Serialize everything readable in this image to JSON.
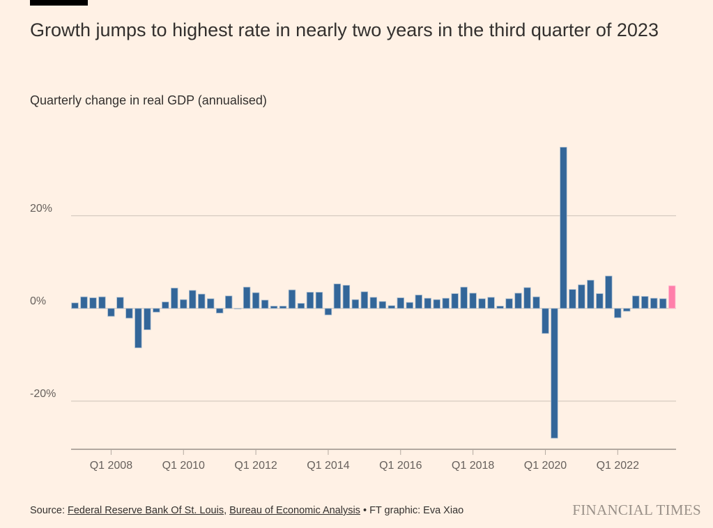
{
  "title": "Growth jumps to highest rate in nearly two years in the third quarter of 2023",
  "subtitle": "Quarterly change in real GDP (annualised)",
  "footer": {
    "source_label": "Source:",
    "source_links": [
      "Federal Reserve Bank Of St. Louis",
      "Bureau of Economic Analysis"
    ],
    "separator": "•",
    "credit": "FT graphic: Eva Xiao",
    "logo": "FINANCIAL TIMES"
  },
  "colors": {
    "background": "#fff1e5",
    "bar": "#336699",
    "highlight": "#ff7faa",
    "grid": "#ccc1b7"
  },
  "chart_data": {
    "type": "bar",
    "title": "Growth jumps to highest rate in nearly two years in the third quarter of 2023",
    "subtitle": "Quarterly change in real GDP (annualised)",
    "xlabel": "",
    "ylabel": "",
    "first_quarter": "Q1 2007",
    "last_quarter": "Q3 2023",
    "x_tick_labels": [
      "Q1 2008",
      "Q1 2010",
      "Q1 2012",
      "Q1 2014",
      "Q1 2016",
      "Q1 2018",
      "Q1 2020",
      "Q1 2022"
    ],
    "y_ticks": [
      20,
      0,
      -20
    ],
    "y_tick_labels": [
      "20%",
      "0%",
      "-20%"
    ],
    "ylim": [
      -30.4,
      35
    ],
    "grid": true,
    "highlight": "last bar (Q3 2023)",
    "values": [
      1.2,
      2.5,
      2.3,
      2.5,
      -1.7,
      2.4,
      -2.1,
      -8.5,
      -4.6,
      -0.8,
      1.4,
      4.4,
      1.9,
      3.9,
      3.1,
      2.1,
      -1.0,
      2.7,
      -0.1,
      4.6,
      3.4,
      1.8,
      0.5,
      0.5,
      4.0,
      1.1,
      3.5,
      3.5,
      -1.4,
      5.3,
      5.0,
      1.9,
      3.6,
      2.4,
      1.5,
      0.6,
      2.3,
      1.3,
      2.9,
      2.2,
      1.9,
      2.2,
      3.2,
      4.6,
      3.3,
      2.1,
      2.4,
      0.5,
      2.1,
      3.3,
      4.5,
      2.5,
      -5.4,
      -28.0,
      34.8,
      4.1,
      5.1,
      6.1,
      3.2,
      7.0,
      -2.0,
      -0.6,
      2.7,
      2.6,
      2.2,
      2.1,
      4.9
    ]
  }
}
